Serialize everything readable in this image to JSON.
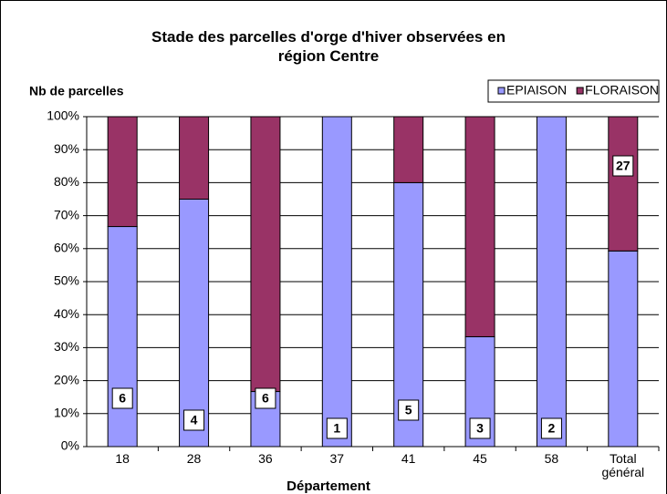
{
  "chart_data": {
    "type": "stacked_bar",
    "title": "Stade des parcelles d'orge d'hiver observées en région Centre",
    "ylabel": "Nb de parcelles",
    "xlabel": "Département",
    "categories": [
      "18",
      "28",
      "36",
      "37",
      "41",
      "45",
      "58",
      "Total général"
    ],
    "series": [
      {
        "name": "EPIAISON",
        "color": "#9999ff",
        "values": [
          66.7,
          75,
          16.7,
          100,
          80,
          33.3,
          100,
          59.3
        ]
      },
      {
        "name": "FLORAISON",
        "color": "#993366",
        "values": [
          33.3,
          25,
          83.3,
          0,
          20,
          66.7,
          0,
          40.7
        ]
      }
    ],
    "counts": [
      6,
      4,
      6,
      1,
      5,
      3,
      2,
      27
    ],
    "ylim": [
      0,
      100
    ],
    "yticks": [
      {
        "value": 0,
        "label": "0%"
      },
      {
        "value": 10,
        "label": "10%"
      },
      {
        "value": 20,
        "label": "20%"
      },
      {
        "value": 30,
        "label": "30%"
      },
      {
        "value": 40,
        "label": "40%"
      },
      {
        "value": 50,
        "label": "50%"
      },
      {
        "value": 60,
        "label": "60%"
      },
      {
        "value": 70,
        "label": "70%"
      },
      {
        "value": 80,
        "label": "80%"
      },
      {
        "value": 90,
        "label": "90%"
      },
      {
        "value": 100,
        "label": "100%"
      }
    ],
    "grid": true,
    "legend": "top-right"
  }
}
